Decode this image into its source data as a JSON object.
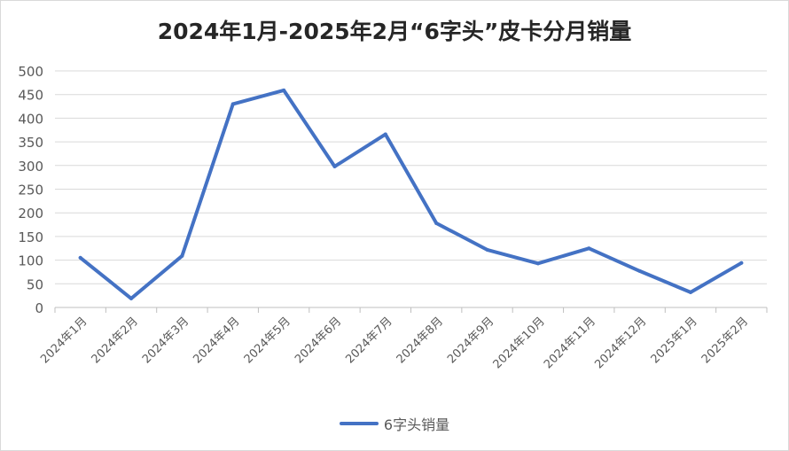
{
  "chart_data": {
    "type": "line",
    "title": "2024年1月-2025年2月“6字头”皮卡分月销量",
    "categories": [
      "2024年1月",
      "2024年2月",
      "2024年3月",
      "2024年4月",
      "2024年5月",
      "2024年6月",
      "2024年7月",
      "2024年8月",
      "2024年9月",
      "2024年10月",
      "2024年11月",
      "2024年12月",
      "2025年1月",
      "2025年2月"
    ],
    "series": [
      {
        "name": "6字头销量",
        "values": [
          105,
          19,
          109,
          430,
          459,
          298,
          366,
          178,
          122,
          93,
          125,
          77,
          32,
          94
        ],
        "color": "#4472c4"
      }
    ],
    "ylim": [
      0,
      500
    ],
    "yticks": [
      0,
      50,
      100,
      150,
      200,
      250,
      300,
      350,
      400,
      450,
      500
    ],
    "grid": true,
    "legend_position": "bottom"
  }
}
